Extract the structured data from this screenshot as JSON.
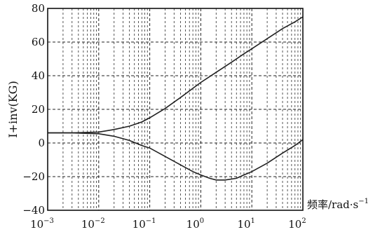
{
  "chart_data": {
    "type": "line",
    "title": "",
    "xscale": "log",
    "xlim": [
      0.001,
      100
    ],
    "ylim": [
      -40,
      80
    ],
    "xlabel": "频率/rad·s",
    "xlabel_exponent": "−1",
    "ylabel": "I+inv(KG)",
    "grid": true,
    "xticks": [
      {
        "base": "10",
        "exp": "−3",
        "value": 0.001
      },
      {
        "base": "10",
        "exp": "−2",
        "value": 0.01
      },
      {
        "base": "10",
        "exp": "−1",
        "value": 0.1
      },
      {
        "base": "10",
        "exp": "0",
        "value": 1
      },
      {
        "base": "10",
        "exp": "1",
        "value": 10
      },
      {
        "base": "10",
        "exp": "2",
        "value": 100
      }
    ],
    "yticks": [
      {
        "label": "80",
        "value": 80
      },
      {
        "label": "60",
        "value": 60
      },
      {
        "label": "40",
        "value": 40
      },
      {
        "label": "20",
        "value": 20
      },
      {
        "label": "0",
        "value": 0
      },
      {
        "label": "−20",
        "value": -20
      },
      {
        "label": "−40",
        "value": -40
      }
    ],
    "series": [
      {
        "x": [
          0.001,
          0.003,
          0.01,
          0.02,
          0.04,
          0.07,
          0.1,
          0.2,
          0.4,
          0.7,
          1,
          2,
          4,
          7,
          10,
          20,
          40,
          70,
          100
        ],
        "y": [
          6,
          6,
          6.5,
          8,
          10,
          12.5,
          15,
          20.5,
          27,
          32.5,
          36,
          42,
          48,
          53,
          56,
          62,
          68,
          72,
          75
        ]
      },
      {
        "x": [
          0.001,
          0.003,
          0.01,
          0.02,
          0.04,
          0.07,
          0.1,
          0.2,
          0.4,
          0.7,
          1,
          1.5,
          2,
          3,
          5,
          7,
          10,
          20,
          40,
          70,
          100
        ],
        "y": [
          6,
          6,
          5.5,
          4,
          1.5,
          -1.5,
          -3,
          -8,
          -13,
          -17,
          -19,
          -21,
          -22,
          -22,
          -21,
          -19,
          -17,
          -12,
          -6,
          -1.5,
          2
        ]
      }
    ]
  }
}
